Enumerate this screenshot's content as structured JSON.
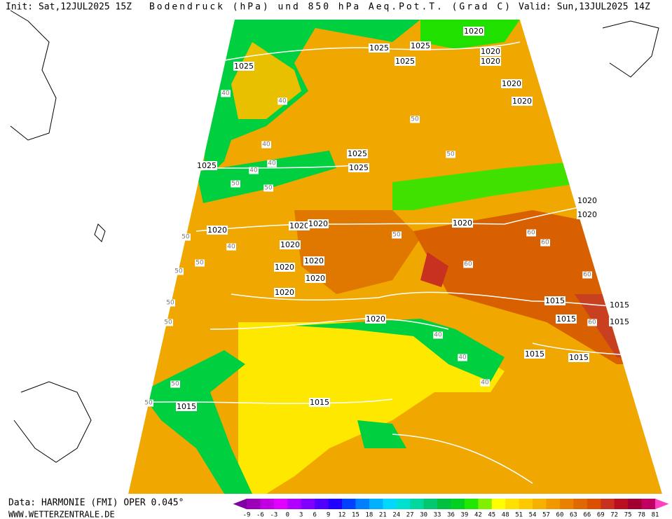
{
  "header": {
    "init": "Init: Sat,12JUL2025 15Z",
    "title": "Bodendruck (hPa) und 850 hPa Aeq.Pot.T. (Grad C)",
    "valid": "Valid: Sun,13JUL2025 14Z"
  },
  "footer": {
    "data": "Data: HARMONIE (FMI) OPER 0.045°",
    "site": "WWW.WETTERZENTRALE.DE"
  },
  "colorbar": {
    "ticks": [
      -9,
      -6,
      -3,
      0,
      3,
      6,
      9,
      12,
      15,
      18,
      21,
      24,
      27,
      30,
      33,
      36,
      39,
      42,
      45,
      48,
      51,
      54,
      57,
      60,
      63,
      66,
      69,
      72,
      75,
      78,
      81
    ],
    "colors": [
      "#8000a0",
      "#9a00b8",
      "#c000e0",
      "#e000ff",
      "#b000ff",
      "#8000ff",
      "#5000ff",
      "#2000ff",
      "#0040ff",
      "#0080ff",
      "#00b0ff",
      "#00d8ff",
      "#00e0d0",
      "#00d8a0",
      "#00c870",
      "#00c040",
      "#00d020",
      "#20e800",
      "#80f000",
      "#ffff00",
      "#ffe000",
      "#ffc800",
      "#f5b000",
      "#f09800",
      "#e88000",
      "#e06800",
      "#d85000",
      "#c83020",
      "#b81020",
      "#a00030",
      "#c00060",
      "#ff40c0"
    ]
  },
  "map": {
    "isobar_labels": [
      "1025",
      "1025",
      "1025",
      "1025",
      "1025",
      "1025",
      "1025",
      "1020",
      "1020",
      "1020",
      "1020",
      "1020",
      "1020",
      "1020",
      "1020",
      "1020",
      "1020",
      "1020",
      "1020",
      "1020",
      "1020",
      "1020",
      "1020",
      "1020",
      "1015",
      "1015",
      "1015",
      "1015",
      "1015",
      "1015",
      "1015",
      "1015"
    ],
    "contour_labels": [
      "40",
      "40",
      "40",
      "40",
      "40",
      "40",
      "40",
      "40",
      "40",
      "50",
      "50",
      "50",
      "50",
      "50",
      "50",
      "50",
      "50",
      "50",
      "50",
      "50",
      "50",
      "60",
      "60",
      "60",
      "60",
      "60"
    ]
  }
}
